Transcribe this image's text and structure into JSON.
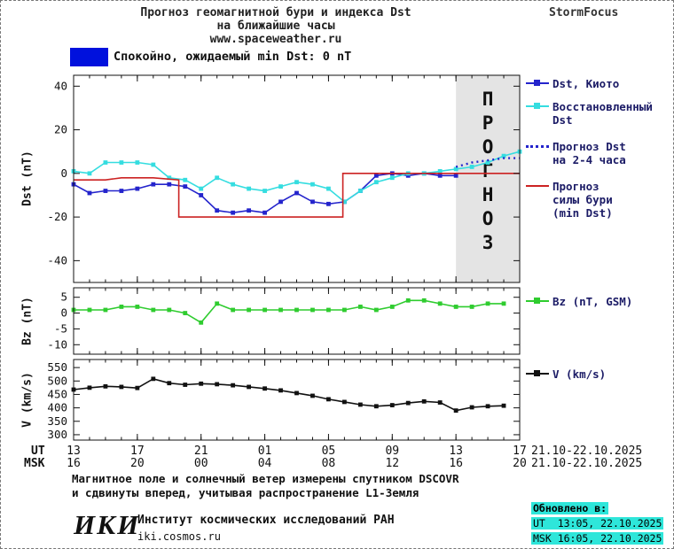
{
  "header": {
    "title_line1": "Прогноз геомагнитной бури и индекса Dst",
    "title_line2": "на ближайшие часы",
    "title_line3": "www.spaceweather.ru",
    "brand": "StormFocus"
  },
  "status_banner": {
    "text": "Спокойно, ожидаемый min Dst: 0 nT",
    "swatch_color": "#0011dd"
  },
  "forecast_band": {
    "label": "ПРОГНОЗ",
    "fill": "#e4e4e4",
    "text_color": "#b8b8b8",
    "start_hour": 24,
    "end_hour": 28
  },
  "chart_data": [
    {
      "type": "line",
      "title": "Dst index measured, restored and forecast",
      "ylabel": "Dst (nT)",
      "ylim": [
        -50,
        45
      ],
      "yticks": [
        40,
        20,
        0,
        -20,
        -40
      ],
      "xlim": [
        0,
        28
      ],
      "grid": false,
      "legend_position": "right",
      "series": [
        {
          "id": "dst-kyoto",
          "name": "Dst, Киото",
          "color": "#2424cc",
          "marker": "square",
          "style": "solid",
          "x": [
            0,
            1,
            2,
            3,
            4,
            5,
            6,
            7,
            8,
            9,
            10,
            11,
            12,
            13,
            14,
            15,
            16,
            17,
            18,
            19,
            20,
            21,
            22,
            23,
            24
          ],
          "y": [
            -5,
            -9,
            -8,
            -8,
            -7,
            -5,
            -5,
            -6,
            -10,
            -17,
            -18,
            -17,
            -18,
            -13,
            -9,
            -13,
            -14,
            -13,
            -8,
            -1,
            0,
            -1,
            0,
            -1,
            -1
          ]
        },
        {
          "id": "restored-dst",
          "name": "Восстановленный Dst",
          "color": "#35dde0",
          "marker": "square",
          "style": "solid",
          "x": [
            0,
            1,
            2,
            3,
            4,
            5,
            6,
            7,
            8,
            9,
            10,
            11,
            12,
            13,
            14,
            15,
            16,
            17,
            18,
            19,
            20,
            21,
            22,
            23,
            24,
            25,
            26,
            27,
            28
          ],
          "y": [
            1,
            0,
            5,
            5,
            5,
            4,
            -2,
            -3,
            -7,
            -2,
            -5,
            -7,
            -8,
            -6,
            -4,
            -5,
            -7,
            -13,
            -8,
            -4,
            -2,
            0,
            0,
            1,
            2,
            3,
            5,
            8,
            10
          ]
        },
        {
          "id": "forecast-dst",
          "name": "Прогноз Dst на 2-4 часа",
          "color": "#2424cc",
          "marker": "none",
          "style": "dotted",
          "x": [
            24,
            25,
            26,
            27,
            28
          ],
          "y": [
            3,
            5,
            6,
            7,
            7
          ]
        },
        {
          "id": "storm-forecast",
          "name": "Прогноз силы бури (min Dst)",
          "color": "#cc2222",
          "marker": "none",
          "style": "solid",
          "x": [
            0,
            2,
            3,
            5,
            6.6,
            6.6,
            16.9,
            16.9,
            28
          ],
          "y": [
            -3,
            -3,
            -2,
            -2,
            -3,
            -20,
            -20,
            0,
            0
          ]
        }
      ]
    },
    {
      "type": "line",
      "title": "Bz component of IMF",
      "ylabel": "Bz (nT)",
      "ylim": [
        -13,
        8
      ],
      "yticks": [
        5,
        0,
        -5,
        -10
      ],
      "xlim": [
        0,
        28
      ],
      "grid": false,
      "series": [
        {
          "id": "bz",
          "name": "Bz (nT, GSM)",
          "color": "#2fcc2f",
          "marker": "square",
          "style": "solid",
          "x": [
            0,
            1,
            2,
            3,
            4,
            5,
            6,
            7,
            8,
            9,
            10,
            11,
            12,
            13,
            14,
            15,
            16,
            17,
            18,
            19,
            20,
            21,
            22,
            23,
            24,
            25,
            26,
            27
          ],
          "y": [
            1,
            1,
            1,
            2,
            2,
            1,
            1,
            0,
            -3,
            3,
            1,
            1,
            1,
            1,
            1,
            1,
            1,
            1,
            2,
            1,
            2,
            4,
            4,
            3,
            2,
            2,
            3,
            3
          ]
        }
      ]
    },
    {
      "type": "line",
      "title": "Solar wind speed",
      "ylabel": "V (km/s)",
      "ylim": [
        280,
        580
      ],
      "yticks": [
        550,
        500,
        450,
        400,
        350,
        300
      ],
      "xlim": [
        0,
        28
      ],
      "grid": false,
      "series": [
        {
          "id": "v",
          "name": "V (km/s)",
          "color": "#111111",
          "marker": "square",
          "style": "solid",
          "x": [
            0,
            1,
            2,
            3,
            4,
            5,
            6,
            7,
            8,
            9,
            10,
            11,
            12,
            13,
            14,
            15,
            16,
            17,
            18,
            19,
            20,
            21,
            22,
            23,
            24,
            25,
            26,
            27
          ],
          "y": [
            468,
            475,
            480,
            478,
            474,
            508,
            492,
            486,
            490,
            488,
            484,
            478,
            472,
            465,
            455,
            445,
            432,
            422,
            412,
            406,
            410,
            418,
            424,
            420,
            390,
            402,
            406,
            408
          ]
        }
      ]
    }
  ],
  "xaxis": {
    "ut_label": "UT",
    "msk_label": "MSK",
    "tick_hours": [
      0,
      4,
      8,
      12,
      16,
      20,
      24,
      28
    ],
    "ut_ticks": [
      "13",
      "17",
      "21",
      "01",
      "05",
      "09",
      "13",
      "17"
    ],
    "msk_ticks": [
      "16",
      "20",
      "00",
      "04",
      "08",
      "12",
      "16",
      "20"
    ],
    "ut_date_range": "21.10-22.10.2025",
    "msk_date_range": "21.10-22.10.2025"
  },
  "legend": {
    "entries": [
      {
        "label": "Dst, Киото",
        "color": "#2424cc",
        "style": "solid",
        "marker": true
      },
      {
        "label": "Восстановленный\nDst",
        "color": "#35dde0",
        "style": "solid",
        "marker": true
      },
      {
        "label": "Прогноз Dst\nна 2-4 часа",
        "color": "#2424cc",
        "style": "dotted",
        "marker": false
      },
      {
        "label": "Прогноз\nсилы бури\n(min Dst)",
        "color": "#cc2222",
        "style": "solid",
        "marker": false
      },
      {
        "label": "Bz (nT, GSM)",
        "color": "#2fcc2f",
        "style": "solid",
        "marker": true
      },
      {
        "label": "V (km/s)",
        "color": "#111111",
        "style": "solid",
        "marker": true
      }
    ]
  },
  "footer": {
    "note_line1": "Магнитное поле и солнечный ветер измерены спутником DSCOVR",
    "note_line2": "и сдвинуты вперед, учитывая распространение L1-Земля",
    "updated_label": "Обновлено в:",
    "updated_ut": "UT  13:05, 22.10.2025",
    "updated_msk": "MSK 16:05, 22.10.2025",
    "highlight_color": "#2ee6da",
    "org_logo": "ИКИ",
    "org_name": "Институт космических исследований РАН",
    "org_url": "iki.cosmos.ru"
  }
}
